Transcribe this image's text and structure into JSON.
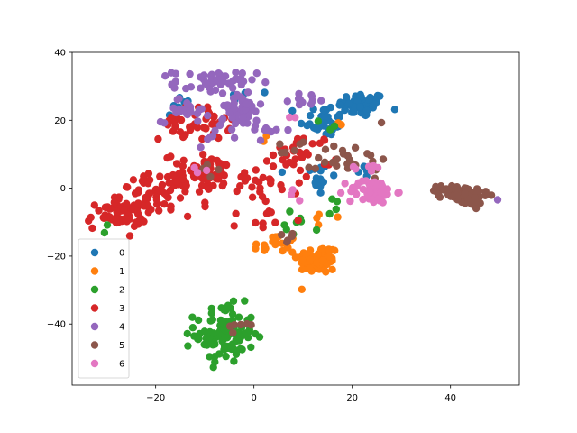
{
  "chart_data": {
    "type": "scatter",
    "title": "",
    "xlabel": "",
    "ylabel": "",
    "xlim": [
      -37,
      54
    ],
    "ylim": [
      -58,
      40
    ],
    "xticks": [
      -20,
      0,
      20,
      40
    ],
    "yticks": [
      -40,
      -20,
      0,
      20,
      40
    ],
    "xtick_labels": [
      "−20",
      "0",
      "20",
      "40"
    ],
    "ytick_labels": [
      "−40",
      "−20",
      "0",
      "20",
      "40"
    ],
    "grid": false,
    "legend": "lower-left",
    "series": [
      {
        "name": "0",
        "color": "#1f77b4",
        "clusters": [
          {
            "cx": 22,
            "cy": 24.5,
            "rx": 4,
            "ry": 3,
            "n": 60
          },
          {
            "cx": 14,
            "cy": 20,
            "rx": 4,
            "ry": 4,
            "n": 30
          },
          {
            "cx": 13,
            "cy": 3,
            "rx": 3,
            "ry": 6,
            "n": 15
          },
          {
            "cx": -15,
            "cy": 24,
            "rx": 3,
            "ry": 3,
            "n": 8
          },
          {
            "cx": -2,
            "cy": 28,
            "rx": 3,
            "ry": 2,
            "n": 5
          },
          {
            "cx": 23,
            "cy": 5,
            "rx": 2,
            "ry": 3,
            "n": 6
          }
        ]
      },
      {
        "name": "1",
        "color": "#ff7f0e",
        "clusters": [
          {
            "cx": 13,
            "cy": -21,
            "rx": 3.5,
            "ry": 3.5,
            "n": 70
          },
          {
            "cx": 4,
            "cy": -17,
            "rx": 4,
            "ry": 3,
            "n": 20
          },
          {
            "cx": 15,
            "cy": -8,
            "rx": 2,
            "ry": 2,
            "n": 4
          },
          {
            "cx": 18,
            "cy": 19,
            "rx": 1,
            "ry": 1,
            "n": 2
          },
          {
            "cx": 2,
            "cy": 14,
            "rx": 1,
            "ry": 1,
            "n": 2
          }
        ]
      },
      {
        "name": "2",
        "color": "#2ca02c",
        "clusters": [
          {
            "cx": -6,
            "cy": -43,
            "rx": 5,
            "ry": 7,
            "n": 110
          },
          {
            "cx": 10,
            "cy": -10,
            "rx": 3,
            "ry": 3,
            "n": 8
          },
          {
            "cx": 17,
            "cy": -5,
            "rx": 2,
            "ry": 3,
            "n": 4
          },
          {
            "cx": 15,
            "cy": 19,
            "rx": 2,
            "ry": 2,
            "n": 3
          },
          {
            "cx": -31,
            "cy": -12,
            "rx": 1,
            "ry": 1,
            "n": 2
          }
        ]
      },
      {
        "name": "3",
        "color": "#d62728",
        "clusters": [
          {
            "cx": -28,
            "cy": -8,
            "rx": 5,
            "ry": 3.5,
            "n": 55
          },
          {
            "cx": -20,
            "cy": -2,
            "rx": 6,
            "ry": 5,
            "n": 70
          },
          {
            "cx": -10,
            "cy": 4,
            "rx": 7,
            "ry": 5,
            "n": 70
          },
          {
            "cx": -12,
            "cy": 19,
            "rx": 6,
            "ry": 4,
            "n": 40
          },
          {
            "cx": 2,
            "cy": 2,
            "rx": 4,
            "ry": 5,
            "n": 20
          },
          {
            "cx": 10,
            "cy": 10,
            "rx": 5,
            "ry": 5,
            "n": 30
          },
          {
            "cx": 2,
            "cy": -9,
            "rx": 4,
            "ry": 4,
            "n": 10
          }
        ]
      },
      {
        "name": "4",
        "color": "#9467bd",
        "clusters": [
          {
            "cx": -8,
            "cy": 31,
            "rx": 7,
            "ry": 3,
            "n": 50
          },
          {
            "cx": -3,
            "cy": 23,
            "rx": 4,
            "ry": 4,
            "n": 40
          },
          {
            "cx": -14,
            "cy": 23,
            "rx": 4,
            "ry": 3,
            "n": 25
          },
          {
            "cx": 11,
            "cy": 26,
            "rx": 3,
            "ry": 1.5,
            "n": 12
          },
          {
            "cx": 3,
            "cy": 17,
            "rx": 4,
            "ry": 2,
            "n": 10
          },
          {
            "cx": -8,
            "cy": 16,
            "rx": 3,
            "ry": 3,
            "n": 10
          },
          {
            "cx": 49,
            "cy": -3.5,
            "rx": 1,
            "ry": 1,
            "n": 1
          }
        ]
      },
      {
        "name": "5",
        "color": "#8c564b",
        "clusters": [
          {
            "cx": 43,
            "cy": -2,
            "rx": 4,
            "ry": 2.5,
            "n": 70
          },
          {
            "cx": 37,
            "cy": -1,
            "rx": 2,
            "ry": 1.5,
            "n": 8
          },
          {
            "cx": 20,
            "cy": 9,
            "rx": 6,
            "ry": 5,
            "n": 25
          },
          {
            "cx": 6,
            "cy": 13,
            "rx": 3,
            "ry": 3,
            "n": 6
          },
          {
            "cx": -2,
            "cy": -40,
            "rx": 3,
            "ry": 4,
            "n": 6
          },
          {
            "cx": 7,
            "cy": -15,
            "rx": 3,
            "ry": 2,
            "n": 5
          },
          {
            "cx": -8,
            "cy": 6,
            "rx": 2,
            "ry": 2,
            "n": 4
          }
        ]
      },
      {
        "name": "6",
        "color": "#e377c2",
        "clusters": [
          {
            "cx": 24,
            "cy": -1,
            "rx": 4,
            "ry": 3,
            "n": 60
          },
          {
            "cx": 24,
            "cy": 6,
            "rx": 2,
            "ry": 2,
            "n": 8
          },
          {
            "cx": 8,
            "cy": -2,
            "rx": 1.5,
            "ry": 1.5,
            "n": 3
          },
          {
            "cx": 8,
            "cy": 20,
            "rx": 1,
            "ry": 1,
            "n": 2
          },
          {
            "cx": -10,
            "cy": 5,
            "rx": 1.5,
            "ry": 1.5,
            "n": 3
          }
        ]
      }
    ]
  },
  "legend_labels": [
    "0",
    "1",
    "2",
    "3",
    "4",
    "5",
    "6"
  ]
}
